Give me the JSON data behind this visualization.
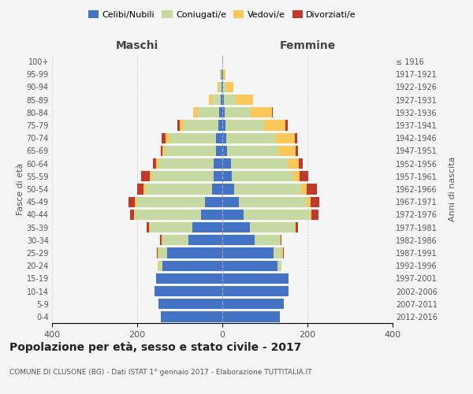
{
  "age_groups": [
    "0-4",
    "5-9",
    "10-14",
    "15-19",
    "20-24",
    "25-29",
    "30-34",
    "35-39",
    "40-44",
    "45-49",
    "50-54",
    "55-59",
    "60-64",
    "65-69",
    "70-74",
    "75-79",
    "80-84",
    "85-89",
    "90-94",
    "95-99",
    "100+"
  ],
  "birth_years": [
    "2012-2016",
    "2007-2011",
    "2002-2006",
    "1997-2001",
    "1992-1996",
    "1987-1991",
    "1982-1986",
    "1977-1981",
    "1972-1976",
    "1967-1971",
    "1962-1966",
    "1957-1961",
    "1952-1956",
    "1947-1951",
    "1942-1946",
    "1937-1941",
    "1932-1936",
    "1927-1931",
    "1922-1926",
    "1917-1921",
    "≤ 1916"
  ],
  "male_celibe": [
    145,
    150,
    160,
    155,
    140,
    130,
    80,
    70,
    50,
    40,
    25,
    20,
    20,
    15,
    15,
    10,
    8,
    4,
    2,
    1,
    0
  ],
  "male_coniugato": [
    0,
    0,
    0,
    0,
    10,
    20,
    60,
    100,
    155,
    160,
    155,
    145,
    130,
    120,
    110,
    80,
    50,
    20,
    5,
    2,
    0
  ],
  "male_vedovo": [
    0,
    0,
    0,
    0,
    2,
    2,
    2,
    2,
    2,
    5,
    5,
    5,
    5,
    5,
    8,
    10,
    10,
    8,
    5,
    2,
    0
  ],
  "male_divorziato": [
    0,
    0,
    0,
    0,
    0,
    2,
    5,
    5,
    10,
    15,
    15,
    20,
    8,
    5,
    10,
    5,
    0,
    0,
    0,
    0,
    0
  ],
  "female_celibe": [
    135,
    145,
    155,
    155,
    130,
    120,
    75,
    65,
    50,
    38,
    28,
    22,
    20,
    12,
    10,
    8,
    6,
    4,
    2,
    1,
    0
  ],
  "female_coniugato": [
    0,
    0,
    0,
    0,
    8,
    20,
    60,
    105,
    155,
    160,
    158,
    145,
    135,
    120,
    115,
    90,
    60,
    28,
    8,
    2,
    0
  ],
  "female_vedovo": [
    0,
    0,
    0,
    0,
    0,
    2,
    2,
    2,
    5,
    10,
    12,
    15,
    25,
    40,
    45,
    50,
    50,
    40,
    15,
    5,
    1
  ],
  "female_divorziato": [
    0,
    0,
    0,
    0,
    0,
    2,
    2,
    5,
    15,
    20,
    25,
    20,
    8,
    5,
    5,
    5,
    2,
    0,
    0,
    0,
    0
  ],
  "colors": {
    "celibe": "#4472C4",
    "coniugato": "#C5D9A0",
    "vedovo": "#FAC858",
    "divorziato": "#C0392B"
  },
  "title": "Popolazione per età, sesso e stato civile - 2017",
  "subtitle": "COMUNE DI CLUSONE (BG) - Dati ISTAT 1° gennaio 2017 - Elaborazione TUTTITALIA.IT",
  "xlabel_left": "Maschi",
  "xlabel_right": "Femmine",
  "ylabel_left": "Fasce di età",
  "ylabel_right": "Anni di nascita",
  "xlim": 400,
  "background_color": "#f5f5f5"
}
